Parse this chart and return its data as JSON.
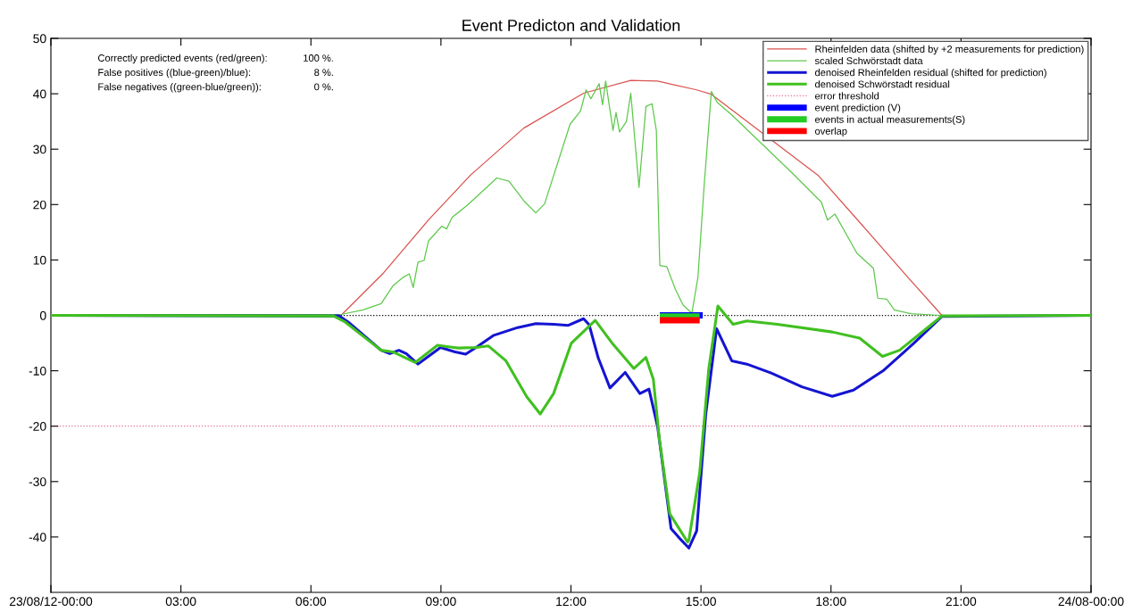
{
  "chart_data": {
    "type": "line",
    "title": "Event Predicton and Validation",
    "xlim": [
      0,
      24
    ],
    "ylim": [
      -50,
      50
    ],
    "xticks": [
      {
        "value": 0,
        "label": "23/08/12-00:00"
      },
      {
        "value": 3,
        "label": "03:00"
      },
      {
        "value": 6,
        "label": "06:00"
      },
      {
        "value": 9,
        "label": "09:00"
      },
      {
        "value": 12,
        "label": "12:00"
      },
      {
        "value": 15,
        "label": "15:00"
      },
      {
        "value": 18,
        "label": "18:00"
      },
      {
        "value": 21,
        "label": "21:00"
      },
      {
        "value": 24,
        "label": "24/08-00:00"
      }
    ],
    "yticks": [
      -40,
      -30,
      -20,
      -10,
      0,
      10,
      20,
      30,
      40,
      50
    ],
    "grid": false,
    "legend": "top right",
    "marker": "none",
    "annotations": [
      "Correctly predicted events (red/green):",
      "100 %.",
      "False positives ((blue-green)/blue):",
      "8 %.",
      "False negatives ((green-blue/green)):",
      "0 %."
    ],
    "ref_lines": [
      {
        "axis": "y",
        "value": 0,
        "label": null,
        "color": "#000000",
        "line_style": "dotted"
      },
      {
        "axis": "y",
        "value": -20,
        "label": "error threshold",
        "color": "#e0708c",
        "line_style": "dotted"
      }
    ],
    "series": [
      {
        "name": "Rheinfelden data (shifted by +2 measurements for prediction)",
        "color": "#d9534f",
        "x": [
          0,
          6.72,
          7.68,
          8.71,
          9.68,
          10.91,
          12.29,
          13.38,
          14.0,
          14.9,
          15.24,
          17.7,
          18.74,
          19.77,
          20.56,
          24
        ],
        "values": [
          0,
          0.2,
          7.7,
          17.2,
          25.3,
          33.8,
          40.1,
          42.4,
          42.3,
          40.7,
          39.9,
          25.3,
          16.1,
          6.9,
          0,
          0
        ]
      },
      {
        "name": "scaled Schwörstadt data",
        "color": "#5cc94a",
        "x": [
          0,
          6.72,
          7.2,
          7.62,
          7.89,
          8.13,
          8.27,
          8.36,
          8.47,
          8.61,
          8.71,
          9.02,
          9.13,
          9.26,
          9.61,
          10.29,
          10.57,
          10.91,
          11.19,
          11.39,
          11.98,
          12.22,
          12.35,
          12.46,
          12.65,
          12.73,
          12.8,
          12.97,
          13.04,
          13.12,
          13.28,
          13.38,
          13.57,
          13.73,
          13.87,
          13.97,
          14.05,
          14.21,
          14.41,
          14.59,
          14.79,
          14.93,
          15.07,
          15.24,
          15.37,
          15.72,
          17.09,
          17.78,
          17.92,
          18.09,
          18.6,
          18.98,
          19.08,
          19.29,
          19.46,
          19.84,
          20.53,
          24
        ],
        "values": [
          0,
          0.2,
          1.0,
          2.1,
          5.3,
          6.9,
          7.5,
          5.0,
          9.6,
          9.9,
          13.4,
          16.1,
          15.6,
          17.7,
          19.9,
          24.8,
          24.2,
          20.7,
          18.5,
          20.1,
          34.5,
          36.9,
          40.7,
          39.1,
          41.8,
          38.0,
          42.3,
          33.4,
          36.6,
          33.1,
          35.0,
          40.1,
          23.1,
          37.7,
          38.2,
          33.4,
          9.0,
          8.8,
          4.7,
          1.8,
          0.4,
          6.9,
          23.1,
          40.4,
          38.5,
          36.1,
          25.8,
          20.4,
          17.2,
          18.3,
          11.2,
          8.5,
          3.1,
          2.9,
          1.0,
          0.3,
          0,
          0
        ]
      },
      {
        "name": "denoised Rheinfelden residual (shifted for prediction)",
        "color": "#1414d2",
        "x": [
          0,
          6.65,
          6.86,
          7.62,
          7.82,
          8.03,
          8.2,
          8.47,
          8.71,
          8.99,
          9.33,
          9.57,
          9.81,
          10.22,
          10.77,
          11.19,
          11.6,
          11.94,
          12.29,
          12.42,
          12.63,
          12.9,
          13.25,
          13.59,
          13.8,
          14.0,
          14.31,
          14.55,
          14.72,
          14.9,
          15.11,
          15.36,
          15.71,
          16.06,
          16.62,
          17.33,
          18.03,
          18.52,
          19.22,
          19.93,
          20.56,
          24
        ],
        "values": [
          0,
          -0.1,
          -1.2,
          -6.3,
          -6.9,
          -6.3,
          -6.9,
          -8.8,
          -7.4,
          -5.8,
          -6.6,
          -7.0,
          -5.8,
          -3.6,
          -2.2,
          -1.5,
          -1.6,
          -1.8,
          -0.6,
          -1.7,
          -7.7,
          -13.1,
          -10.3,
          -14.1,
          -13.3,
          -20.1,
          -38.5,
          -40.6,
          -42.0,
          -38.9,
          -17.9,
          -2.4,
          -8.2,
          -8.8,
          -10.4,
          -12.9,
          -14.6,
          -13.5,
          -9.9,
          -4.9,
          -0.2,
          0
        ]
      },
      {
        "name": "denoised Schwörstadt residual",
        "color": "#40c020",
        "x": [
          0,
          6.52,
          6.79,
          7.62,
          7.89,
          8.41,
          8.92,
          9.4,
          9.81,
          10.09,
          10.5,
          10.98,
          11.29,
          11.6,
          12.01,
          12.56,
          12.97,
          13.45,
          13.73,
          13.9,
          14.04,
          14.28,
          14.69,
          14.72,
          14.97,
          15.18,
          15.39,
          15.74,
          16.06,
          16.76,
          18.03,
          18.66,
          19.19,
          19.58,
          20.28,
          20.56,
          24
        ],
        "values": [
          0,
          -0.1,
          -1.2,
          -6.3,
          -6.6,
          -8.5,
          -5.4,
          -5.9,
          -5.8,
          -5.5,
          -8.2,
          -14.7,
          -17.8,
          -14.1,
          -5.0,
          -0.9,
          -5.2,
          -9.6,
          -7.6,
          -11.5,
          -22.3,
          -35.8,
          -40.9,
          -40.6,
          -28.4,
          -9.6,
          1.7,
          -1.6,
          -1.0,
          -1.6,
          -3.0,
          -4.1,
          -7.4,
          -6.3,
          -1.9,
          -0.1,
          0
        ]
      },
      {
        "name": "event prediction (V)",
        "color": "#0000ff",
        "x": [
          14.05,
          15.04
        ],
        "values": [
          0,
          0
        ]
      },
      {
        "name": "events in actual measurements(S)",
        "color": "#22cc22",
        "x": [
          14.05,
          14.97
        ],
        "values": [
          -0.2,
          -0.2
        ]
      },
      {
        "name": "overlap",
        "color": "#ff0000",
        "x": [
          14.05,
          14.97
        ],
        "values": [
          -0.9,
          -0.9
        ]
      }
    ]
  }
}
